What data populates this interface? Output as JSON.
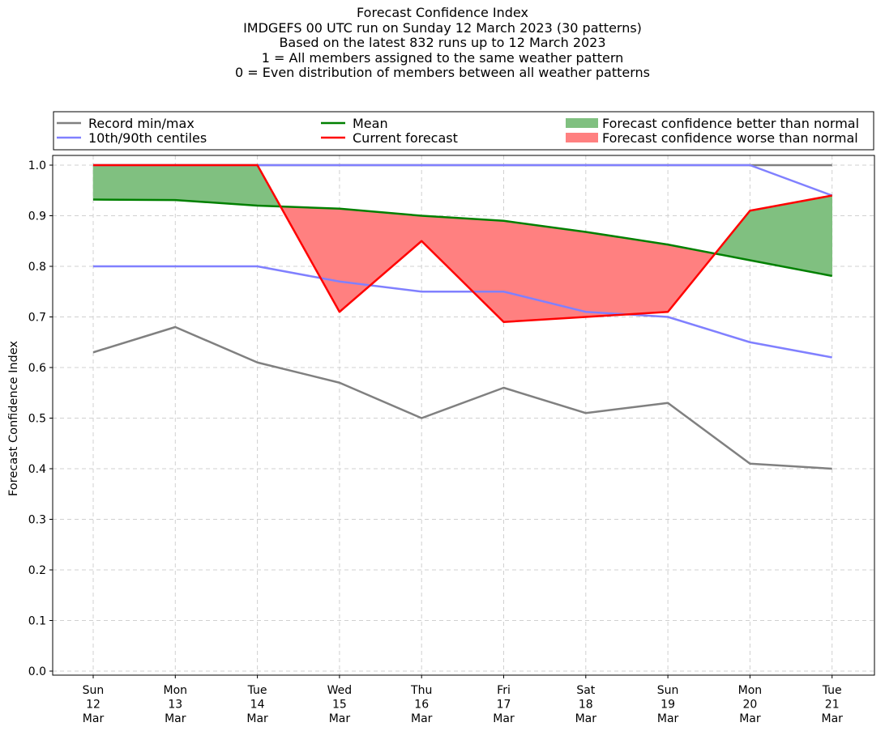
{
  "chart_data": {
    "type": "line",
    "title_lines": [
      "Forecast Confidence Index",
      "IMDGEFS 00 UTC run on Sunday 12 March 2023 (30 patterns)",
      "Based on the latest 832 runs up to 12 March 2023",
      "1 = All members assigned to the same weather pattern",
      "0 = Even distribution of members between all weather patterns"
    ],
    "ylabel": "Forecast Confidence Index",
    "ylim": [
      0.0,
      1.0
    ],
    "y_ticks": [
      "0.0",
      "0.1",
      "0.2",
      "0.3",
      "0.4",
      "0.5",
      "0.6",
      "0.7",
      "0.8",
      "0.9",
      "1.0"
    ],
    "categories": [
      [
        "Sun",
        "12",
        "Mar"
      ],
      [
        "Mon",
        "13",
        "Mar"
      ],
      [
        "Tue",
        "14",
        "Mar"
      ],
      [
        "Wed",
        "15",
        "Mar"
      ],
      [
        "Thu",
        "16",
        "Mar"
      ],
      [
        "Fri",
        "17",
        "Mar"
      ],
      [
        "Sat",
        "18",
        "Mar"
      ],
      [
        "Sun",
        "19",
        "Mar"
      ],
      [
        "Mon",
        "20",
        "Mar"
      ],
      [
        "Tue",
        "21",
        "Mar"
      ]
    ],
    "grid": true,
    "legend_position": "top",
    "legend": [
      {
        "label": "Record min/max",
        "kind": "line",
        "color": "#808080"
      },
      {
        "label": "10th/90th centiles",
        "kind": "line",
        "color": "#8080ff"
      },
      {
        "label": "Mean",
        "kind": "line",
        "color": "#008000"
      },
      {
        "label": "Current forecast",
        "kind": "line",
        "color": "#ff0000"
      },
      {
        "label": "Forecast confidence better than normal",
        "kind": "patch",
        "color": "#80c080"
      },
      {
        "label": "Forecast confidence worse than normal",
        "kind": "patch",
        "color": "#ff8080"
      }
    ],
    "series": [
      {
        "name": "Record min/max",
        "role": "record_min",
        "color": "#808080",
        "values": [
          0.63,
          0.68,
          0.61,
          0.57,
          0.5,
          0.56,
          0.51,
          0.53,
          0.41,
          0.4
        ]
      },
      {
        "name": "Record min/max",
        "role": "record_max",
        "color": "#808080",
        "values": [
          1.0,
          1.0,
          1.0,
          1.0,
          1.0,
          1.0,
          1.0,
          1.0,
          1.0,
          1.0
        ]
      },
      {
        "name": "10th/90th centiles",
        "role": "p10",
        "color": "#8080ff",
        "values": [
          0.8,
          0.8,
          0.8,
          0.77,
          0.75,
          0.75,
          0.71,
          0.7,
          0.65,
          0.62
        ]
      },
      {
        "name": "10th/90th centiles",
        "role": "p90",
        "color": "#8080ff",
        "values": [
          1.0,
          1.0,
          1.0,
          1.0,
          1.0,
          1.0,
          1.0,
          1.0,
          1.0,
          0.94
        ]
      },
      {
        "name": "Mean",
        "role": "mean",
        "color": "#008000",
        "values": [
          0.932,
          0.931,
          0.92,
          0.914,
          0.9,
          0.89,
          0.868,
          0.843,
          0.812,
          0.781
        ]
      },
      {
        "name": "Current forecast",
        "role": "current",
        "color": "#ff0000",
        "values": [
          1.0,
          1.0,
          1.0,
          0.71,
          0.85,
          0.69,
          0.7,
          0.71,
          0.91,
          0.94
        ]
      }
    ],
    "fill_colors": {
      "better": "#80c080",
      "worse": "#ff8080"
    }
  }
}
